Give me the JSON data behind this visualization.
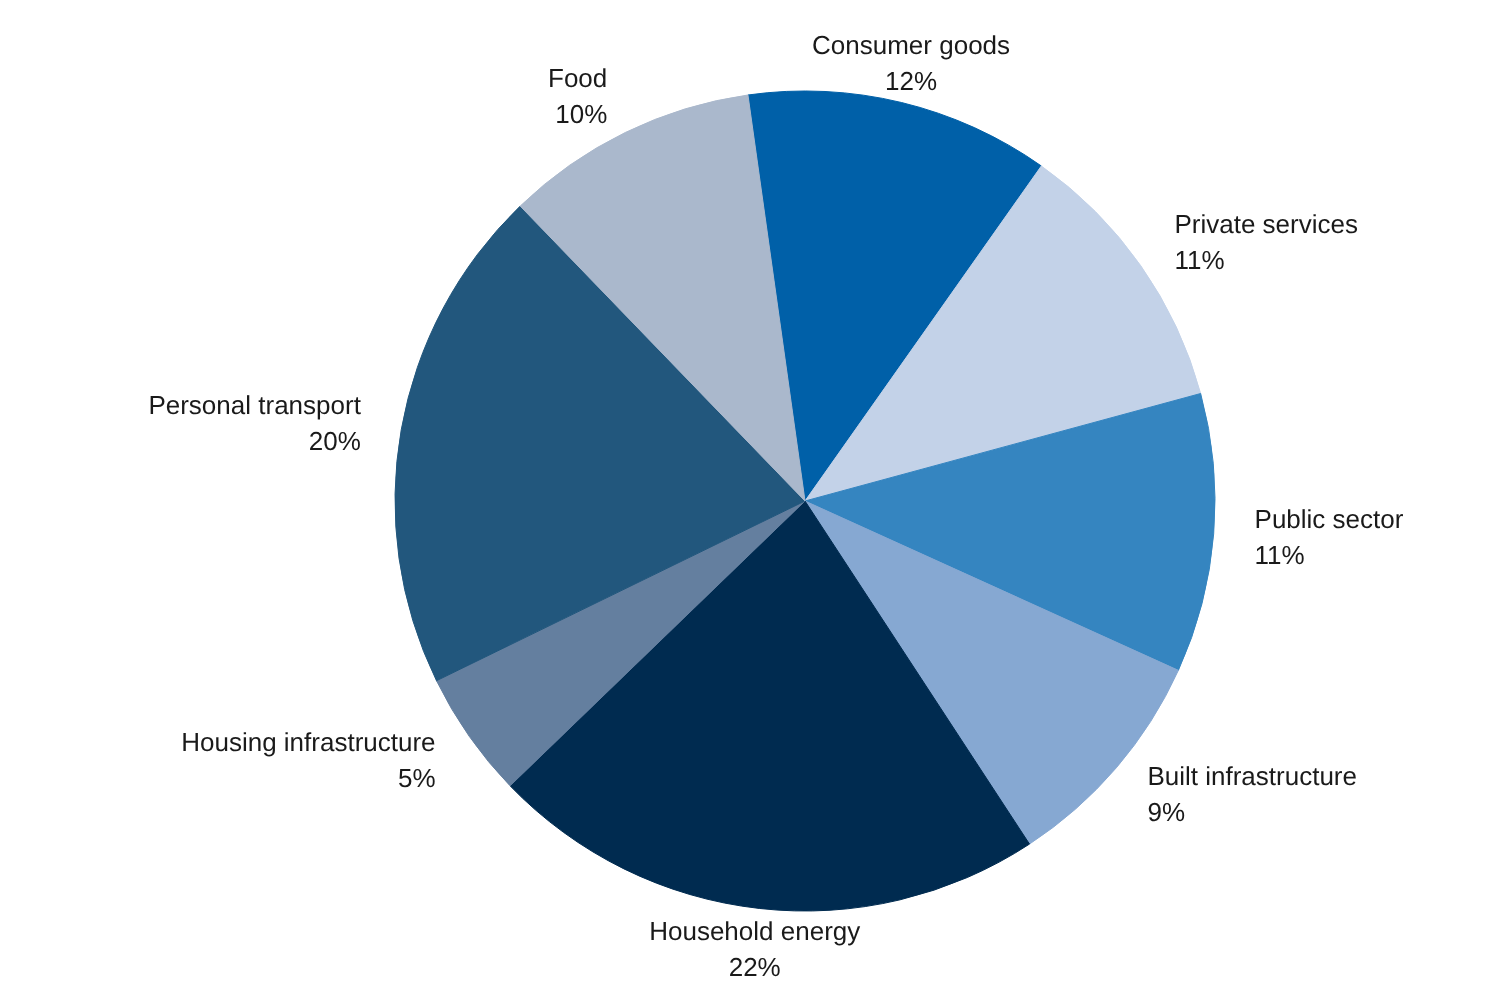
{
  "chart_data": {
    "type": "pie",
    "categories": [
      "Consumer goods",
      "Private services",
      "Public sector",
      "Built infrastructure",
      "Household energy",
      "Housing infrastructure",
      "Personal transport",
      "Food"
    ],
    "values": [
      12,
      11,
      11,
      9,
      22,
      5,
      20,
      10
    ],
    "value_labels": [
      "12%",
      "11%",
      "11%",
      "9%",
      "22%",
      "5%",
      "20%",
      "10%"
    ],
    "colors": [
      "#0060a8",
      "#c3d2e8",
      "#3585c0",
      "#86a8d2",
      "#002b50",
      "#647f9f",
      "#22577d",
      "#aab8cc"
    ]
  }
}
